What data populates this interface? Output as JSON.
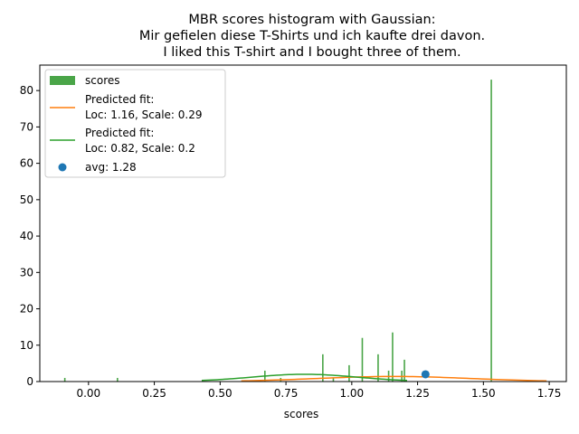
{
  "chart_data": {
    "type": "bar",
    "title_lines": [
      "MBR scores histogram with Gaussian:",
      "Mir gefielen diese T-Shirts und ich kaufte drei davon.",
      "I liked this T-shirt and I bought three of them."
    ],
    "xlabel": "scores",
    "ylabel": "",
    "xlim": [
      -0.185,
      1.815
    ],
    "ylim": [
      0,
      87
    ],
    "xticks": [
      "0.00",
      "0.25",
      "0.50",
      "0.75",
      "1.00",
      "1.25",
      "1.50",
      "1.75"
    ],
    "xtick_values": [
      0,
      0.25,
      0.5,
      0.75,
      1.0,
      1.25,
      1.5,
      1.75
    ],
    "yticks": [
      "0",
      "10",
      "20",
      "30",
      "40",
      "50",
      "60",
      "70",
      "80"
    ],
    "ytick_values": [
      0,
      10,
      20,
      30,
      40,
      50,
      60,
      70,
      80
    ],
    "grid": false,
    "legend_position": "top-left",
    "bars": {
      "name": "scores",
      "color": "#4aa548",
      "bin_width": 0.004,
      "x": [
        -0.09,
        0.11,
        0.67,
        0.73,
        0.89,
        0.93,
        0.99,
        1.04,
        1.1,
        1.14,
        1.155,
        1.19,
        1.2,
        1.53
      ],
      "y": [
        1,
        1,
        3,
        1,
        7.5,
        1,
        4.5,
        12,
        7.5,
        3,
        13.5,
        3,
        6,
        83
      ]
    },
    "lines": [
      {
        "label_lines": [
          "Predicted fit:",
          "Loc: 1.16, Scale: 0.29"
        ],
        "color": "#ff7f0e",
        "x_range": [
          0.58,
          1.74
        ],
        "loc": 1.16,
        "scale": 0.29,
        "peak": 1.4
      },
      {
        "label_lines": [
          "Predicted fit:",
          "Loc: 0.82, Scale: 0.2"
        ],
        "color": "#2ca02c",
        "x_range": [
          0.43,
          1.21
        ],
        "loc": 0.82,
        "scale": 0.2,
        "peak": 2.0
      }
    ],
    "scatter": {
      "label": "avg: 1.28",
      "color": "#1f77b4",
      "x": 1.28,
      "y": 2
    }
  }
}
